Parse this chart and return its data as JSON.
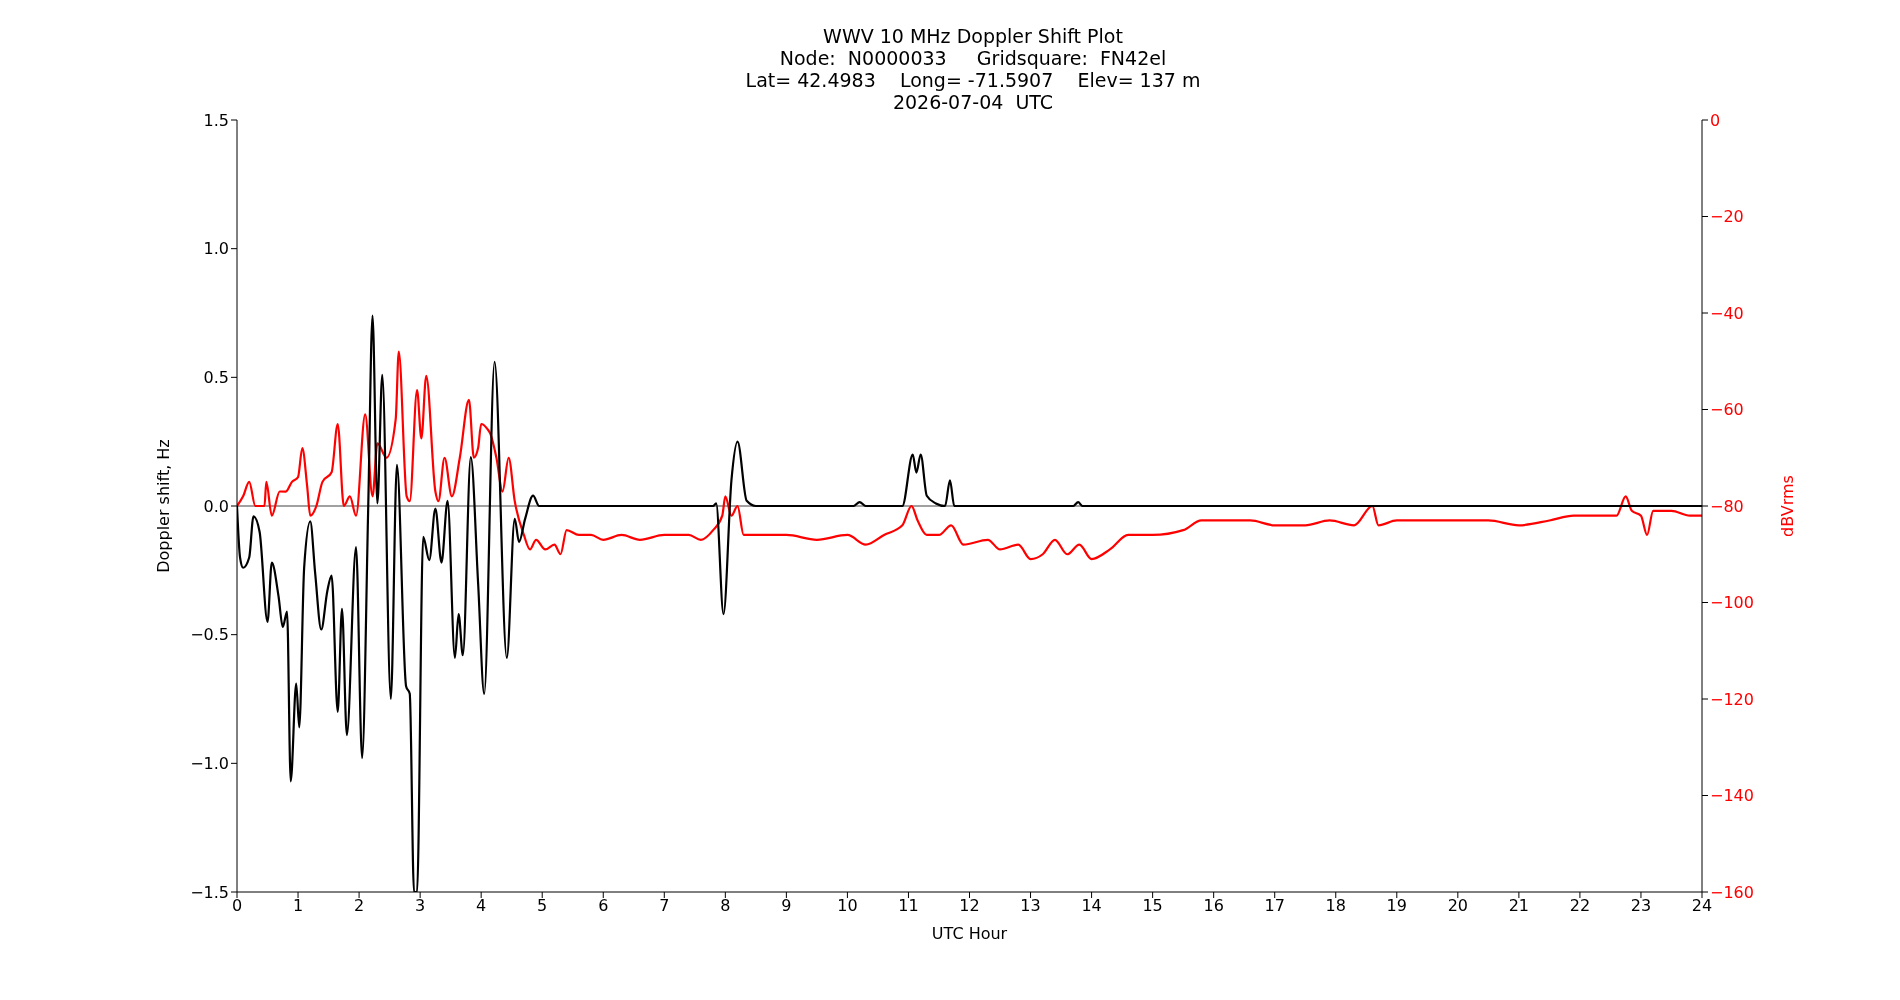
{
  "chart_data": {
    "type": "line",
    "title": "WWV 10 MHz Doppler Shift Plot",
    "subtitle": "Node:  N0000033     Gridsquare:  FN42el\nLat= 42.4983    Long= -71.5907    Elev= 137 m\n2026-07-04  UTC",
    "xlabel": "UTC Hour",
    "ylabel": "Doppler shift, Hz",
    "y2label": "dBVrms",
    "xlim": [
      0,
      24
    ],
    "xticks": [
      0,
      1,
      2,
      3,
      4,
      5,
      6,
      7,
      8,
      9,
      10,
      11,
      12,
      13,
      14,
      15,
      16,
      17,
      18,
      19,
      20,
      21,
      22,
      23,
      24
    ],
    "ylim": [
      -1.5,
      1.5
    ],
    "yticks": [
      {
        "value": -1.5,
        "label": "−1.5"
      },
      {
        "value": -1,
        "label": "−1.0"
      },
      {
        "value": -0.5,
        "label": "−0.5"
      },
      {
        "value": 0,
        "label": "0.0"
      },
      {
        "value": 0.5,
        "label": "0.5"
      },
      {
        "value": 1,
        "label": "1.0"
      },
      {
        "value": 1.5,
        "label": "1.5"
      }
    ],
    "y2lim": [
      -160,
      0
    ],
    "y2ticks": [
      {
        "value": -160,
        "label": "−160"
      },
      {
        "value": -140,
        "label": "−140"
      },
      {
        "value": -120,
        "label": "−120"
      },
      {
        "value": -100,
        "label": "−100"
      },
      {
        "value": -80,
        "label": "−80"
      },
      {
        "value": -60,
        "label": "−60"
      },
      {
        "value": -40,
        "label": "−40"
      },
      {
        "value": -20,
        "label": "−20"
      },
      0
    ],
    "ref_lines": [
      {
        "axis": "y",
        "value": 0,
        "color": "#808080"
      }
    ],
    "series": [
      {
        "color": "#ff0000",
        "axis": "y2",
        "x": [
          0,
          0.1,
          0.2,
          0.3,
          0.45,
          0.48,
          0.57,
          0.7,
          0.8,
          0.9,
          1.0,
          1.07,
          1.15,
          1.2,
          1.3,
          1.4,
          1.55,
          1.65,
          1.75,
          1.85,
          1.95,
          2.1,
          2.22,
          2.3,
          2.45,
          2.6,
          2.65,
          2.78,
          2.83,
          2.95,
          3.02,
          3.1,
          3.25,
          3.3,
          3.4,
          3.52,
          3.65,
          3.8,
          3.88,
          3.95,
          4.0,
          4.1,
          4.15,
          4.25,
          4.35,
          4.45,
          4.55,
          4.7,
          4.8,
          4.9,
          5.05,
          5.2,
          5.3,
          5.4,
          5.6,
          5.8,
          6.0,
          6.3,
          6.6,
          7.0,
          7.4,
          7.6,
          7.8,
          7.95,
          8.0,
          8.1,
          8.2,
          8.3,
          8.6,
          9.0,
          9.5,
          10.0,
          10.3,
          10.6,
          10.9,
          11.05,
          11.15,
          11.3,
          11.5,
          11.7,
          11.9,
          12.3,
          12.5,
          12.8,
          13.0,
          13.2,
          13.4,
          13.6,
          13.8,
          14.0,
          14.3,
          14.6,
          15.0,
          15.5,
          15.8,
          16.2,
          16.6,
          17.0,
          17.5,
          17.9,
          18.3,
          18.6,
          18.7,
          19.0,
          19.5,
          20.0,
          20.5,
          21.0,
          21.5,
          21.9,
          22.3,
          22.6,
          22.75,
          22.85,
          23.0,
          23.1,
          23.2,
          23.5,
          23.8,
          24.0
        ],
        "values": [
          -80,
          -78,
          -75,
          -80,
          -80,
          -75,
          -82,
          -77,
          -77,
          -75,
          -74,
          -68,
          -76,
          -82,
          -80,
          -75,
          -73,
          -63,
          -80,
          -78,
          -82,
          -61,
          -78,
          -67,
          -70,
          -62,
          -48,
          -78,
          -79,
          -56,
          -66,
          -53,
          -77,
          -79,
          -70,
          -78,
          -70,
          -58,
          -70,
          -68,
          -63,
          -64,
          -65,
          -70,
          -77,
          -70,
          -79,
          -86,
          -89,
          -87,
          -89,
          -88,
          -90,
          -85,
          -86,
          -86,
          -87,
          -86,
          -87,
          -86,
          -86,
          -87,
          -85,
          -82,
          -78,
          -82,
          -80,
          -86,
          -86,
          -86,
          -87,
          -86,
          -88,
          -86,
          -84,
          -80,
          -83,
          -86,
          -86,
          -84,
          -88,
          -87,
          -89,
          -88,
          -91,
          -90,
          -87,
          -90,
          -88,
          -91,
          -89,
          -86,
          -86,
          -85,
          -83,
          -83,
          -83,
          -84,
          -84,
          -83,
          -84,
          -80,
          -84,
          -83,
          -83,
          -83,
          -83,
          -84,
          -83,
          -82,
          -82,
          -82,
          -78,
          -81,
          -82,
          -86,
          -81,
          -81,
          -82,
          -82
        ]
      },
      {
        "color": "#000000",
        "axis": "y",
        "x": [
          0,
          0.05,
          0.1,
          0.2,
          0.27,
          0.37,
          0.5,
          0.57,
          0.68,
          0.75,
          0.82,
          0.88,
          0.97,
          1.02,
          1.1,
          1.2,
          1.28,
          1.38,
          1.48,
          1.55,
          1.65,
          1.72,
          1.8,
          1.95,
          2.05,
          2.15,
          2.22,
          2.3,
          2.38,
          2.52,
          2.62,
          2.77,
          2.83,
          2.9,
          2.95,
          3.05,
          3.15,
          3.25,
          3.35,
          3.45,
          3.57,
          3.63,
          3.7,
          3.83,
          3.95,
          4.05,
          4.22,
          4.42,
          4.55,
          4.62,
          4.72,
          4.85,
          4.95,
          7.8,
          7.85,
          7.97,
          8.1,
          8.2,
          8.35,
          8.5,
          10.1,
          10.2,
          10.3,
          10.9,
          11.07,
          11.13,
          11.2,
          11.3,
          11.45,
          11.6,
          11.68,
          11.75,
          13.7,
          13.78,
          13.85,
          24
        ],
        "values": [
          0,
          -0.2,
          -0.24,
          -0.2,
          -0.04,
          -0.1,
          -0.45,
          -0.22,
          -0.35,
          -0.47,
          -0.41,
          -1.07,
          -0.69,
          -0.86,
          -0.24,
          -0.06,
          -0.26,
          -0.48,
          -0.33,
          -0.27,
          -0.8,
          -0.4,
          -0.89,
          -0.16,
          -0.98,
          0,
          0.74,
          0.01,
          0.51,
          -0.75,
          0.16,
          -0.7,
          -0.73,
          -1.5,
          -1.5,
          -0.12,
          -0.21,
          -0.01,
          -0.22,
          0.02,
          -0.59,
          -0.42,
          -0.58,
          0.19,
          -0.3,
          -0.73,
          0.56,
          -0.59,
          -0.05,
          -0.14,
          -0.05,
          0.04,
          0,
          0,
          0.01,
          -0.42,
          0.1,
          0.25,
          0.02,
          0,
          0,
          0.015,
          0,
          0,
          0.2,
          0.13,
          0.2,
          0.04,
          0.01,
          0,
          0.1,
          0,
          0,
          0.015,
          0,
          0
        ]
      }
    ]
  }
}
